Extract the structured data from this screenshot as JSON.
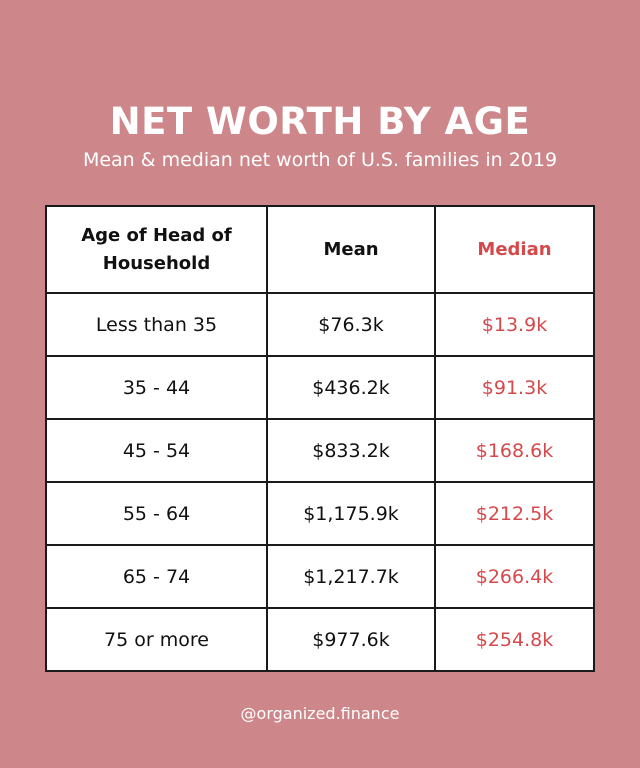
{
  "title": "NET WORTH BY AGE",
  "subtitle": "Mean & median net worth of U.S. families in 2019",
  "handle": "@organized.finance",
  "colors": {
    "background": "#cd878a",
    "median_text": "#d4494c",
    "table_bg": "#ffffff",
    "border": "#1a1a1a"
  },
  "chart_data": {
    "type": "table",
    "title": "NET WORTH BY AGE",
    "subtitle": "Mean & median net worth of U.S. families in 2019",
    "columns": [
      "Age of Head of Household",
      "Mean",
      "Median"
    ],
    "rows": [
      {
        "age": "Less than 35",
        "mean": "$76.3k",
        "median": "$13.9k"
      },
      {
        "age": "35 - 44",
        "mean": "$436.2k",
        "median": "$91.3k"
      },
      {
        "age": "45 - 54",
        "mean": "$833.2k",
        "median": "$168.6k"
      },
      {
        "age": "55 - 64",
        "mean": "$1,175.9k",
        "median": "$212.5k"
      },
      {
        "age": "65 - 74",
        "mean": "$1,217.7k",
        "median": "$266.4k"
      },
      {
        "age": "75 or more",
        "mean": "$977.6k",
        "median": "$254.8k"
      }
    ]
  }
}
